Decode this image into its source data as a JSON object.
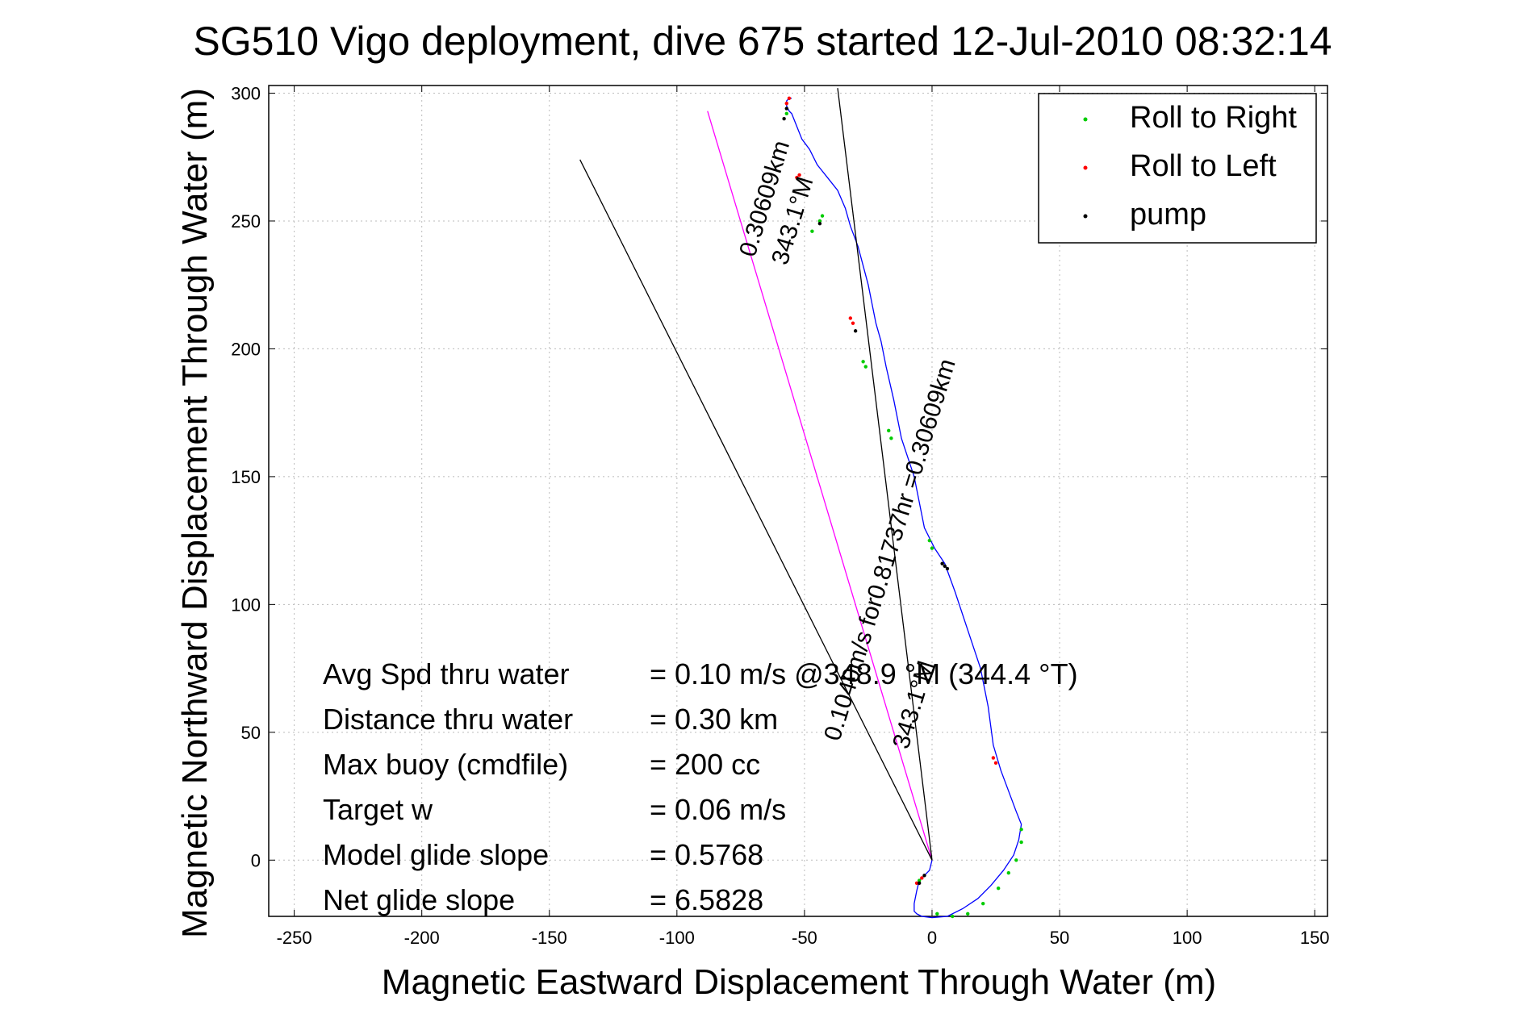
{
  "chart_data": {
    "type": "line",
    "title": "SG510 Vigo deployment, dive 675 started 12-Jul-2010 08:32:14",
    "xlabel": "Magnetic Eastward Displacement Through Water (m)",
    "ylabel": "Magnetic Northward Displacement Through Water (m)",
    "xlim": [
      -260,
      155
    ],
    "ylim": [
      -22,
      303
    ],
    "xticks": [
      -250,
      -200,
      -150,
      -100,
      -50,
      0,
      50,
      100,
      150
    ],
    "yticks": [
      0,
      50,
      100,
      150,
      200,
      250,
      300
    ],
    "xtick_labels": [
      "-250",
      "-200",
      "-150",
      "-100",
      "-50",
      "0",
      "50",
      "100",
      "150"
    ],
    "ytick_labels": [
      "0",
      "50",
      "100",
      "150",
      "200",
      "250",
      "300"
    ],
    "grid": true,
    "legend_position": "top-right",
    "legend": [
      {
        "label": "Roll to Right",
        "color": "#00cc00"
      },
      {
        "label": "Roll to Left",
        "color": "#ff0000"
      },
      {
        "label": "pump",
        "color": "#000000"
      }
    ],
    "series": [
      {
        "name": "track",
        "color": "#0000ff",
        "x": [
          0,
          -1,
          -3,
          -5,
          -6,
          -7,
          -7,
          -6,
          -4,
          0,
          6,
          12,
          18,
          23,
          28,
          32,
          34,
          35,
          33,
          30,
          27,
          24,
          22,
          19,
          14,
          9,
          5,
          1,
          -3,
          -7,
          -12,
          -15,
          -18,
          -20,
          -22,
          -25,
          -29,
          -32,
          -34,
          -37,
          -41,
          -45,
          -48,
          -51,
          -53,
          -55,
          -56,
          -57,
          -57,
          -56,
          -55
        ],
        "y": [
          0,
          -4,
          -6,
          -8,
          -12,
          -17,
          -20,
          -21,
          -22,
          -22.5,
          -22,
          -19,
          -15,
          -10,
          -4,
          2,
          8,
          14,
          19,
          27,
          35,
          45,
          60,
          75,
          90,
          105,
          116,
          122,
          130,
          150,
          165,
          180,
          193,
          203,
          210,
          225,
          240,
          248,
          255,
          262,
          267,
          272,
          278,
          282,
          287,
          292,
          293,
          295,
          297,
          298,
          298
        ]
      },
      {
        "name": "heading line",
        "color": "#ff00ff",
        "x": [
          0,
          -88
        ],
        "y": [
          0,
          293
        ]
      },
      {
        "name": "line a",
        "color": "#000000",
        "x": [
          0,
          -138
        ],
        "y": [
          0,
          274
        ]
      },
      {
        "name": "line b",
        "color": "#000000",
        "x": [
          0,
          -37
        ],
        "y": [
          0,
          302
        ]
      }
    ],
    "markers": {
      "roll_right": {
        "color": "#00cc00",
        "points": [
          [
            -5,
            -8
          ],
          [
            2,
            -21
          ],
          [
            8,
            -22
          ],
          [
            14,
            -21
          ],
          [
            20,
            -17
          ],
          [
            26,
            -11
          ],
          [
            30,
            -5
          ],
          [
            33,
            0
          ],
          [
            35,
            7
          ],
          [
            35,
            12
          ],
          [
            -43,
            252
          ],
          [
            -44,
            250
          ],
          [
            -47,
            246
          ],
          [
            -27,
            195
          ],
          [
            -26,
            193
          ],
          [
            -17,
            168
          ],
          [
            -16,
            165
          ],
          [
            -1,
            125
          ],
          [
            0,
            122
          ],
          [
            -57,
            292
          ]
        ]
      },
      "roll_left": {
        "color": "#ff0000",
        "points": [
          [
            -4,
            -7
          ],
          [
            -6,
            -9
          ],
          [
            24,
            40
          ],
          [
            25,
            38
          ],
          [
            -52,
            268
          ],
          [
            -53,
            267
          ],
          [
            -31,
            210
          ],
          [
            -32,
            212
          ],
          [
            -57,
            296
          ],
          [
            -56,
            298
          ]
        ]
      },
      "pump": {
        "color": "#000000",
        "points": [
          [
            -3,
            -6
          ],
          [
            -5,
            -9
          ],
          [
            5,
            115
          ],
          [
            6,
            114
          ],
          [
            4,
            116
          ],
          [
            -58,
            290
          ],
          [
            -57,
            294
          ],
          [
            -30,
            207
          ],
          [
            -44,
            249
          ]
        ]
      }
    },
    "annotations": [
      {
        "label": "Avg Spd thru water",
        "value": "=  0.10 m/s @348.9 °M (344.4 °T)"
      },
      {
        "label": "Distance thru water",
        "value": "=  0.30 km"
      },
      {
        "label": "Max buoy (cmdfile)",
        "value": "= 200 cc"
      },
      {
        "label": "Target w",
        "value": "= 0.06 m/s"
      },
      {
        "label": "Model glide slope",
        "value": "= 0.5768"
      },
      {
        "label": "Net glide slope",
        "value": "= 6.5828"
      }
    ],
    "rotated_labels": [
      {
        "text": "0.30609km",
        "angle_deg": -73
      },
      {
        "text": "343.1°M",
        "angle_deg": -73
      },
      {
        "text": "0.1040m/s for0.81737hr =0.30609km",
        "angle_deg": -73
      },
      {
        "text": "343.1°M",
        "angle_deg": -73
      }
    ]
  }
}
